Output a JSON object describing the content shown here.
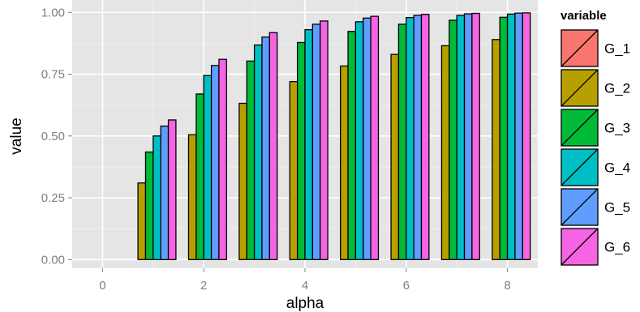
{
  "chart_data": {
    "type": "bar",
    "xlabel": "alpha",
    "ylabel": "value",
    "x": [
      0,
      1,
      2,
      3,
      4,
      5,
      6,
      7,
      8
    ],
    "x_ticks": [
      0,
      2,
      4,
      6,
      8
    ],
    "xlim": [
      -0.6,
      8.6
    ],
    "ylim": [
      -0.035,
      1.05
    ],
    "y_ticks": [
      0.0,
      0.25,
      0.5,
      0.75,
      1.0
    ],
    "y_tick_labels": [
      "0.00",
      "0.25",
      "0.50",
      "0.75",
      "1.00"
    ],
    "grid": true,
    "legend": {
      "title": "variable",
      "placement": "right"
    },
    "series": [
      {
        "name": "G_1",
        "color": "#F8766D",
        "values": [
          0,
          0,
          0,
          0,
          0,
          0,
          0,
          0,
          0
        ]
      },
      {
        "name": "G_2",
        "color": "#B79F00",
        "values": [
          0,
          0.31,
          0.505,
          0.632,
          0.72,
          0.783,
          0.83,
          0.865,
          0.89
        ]
      },
      {
        "name": "G_3",
        "color": "#00BA38",
        "values": [
          0,
          0.435,
          0.67,
          0.803,
          0.878,
          0.923,
          0.952,
          0.968,
          0.98
        ]
      },
      {
        "name": "G_4",
        "color": "#00BFC4",
        "values": [
          0,
          0.5,
          0.745,
          0.868,
          0.93,
          0.962,
          0.979,
          0.988,
          0.993
        ]
      },
      {
        "name": "G_5",
        "color": "#619CFF",
        "values": [
          0,
          0.54,
          0.785,
          0.9,
          0.952,
          0.977,
          0.988,
          0.994,
          0.997
        ]
      },
      {
        "name": "G_6",
        "color": "#F564E3",
        "values": [
          0,
          0.565,
          0.81,
          0.918,
          0.965,
          0.984,
          0.992,
          0.996,
          0.998
        ]
      }
    ]
  }
}
